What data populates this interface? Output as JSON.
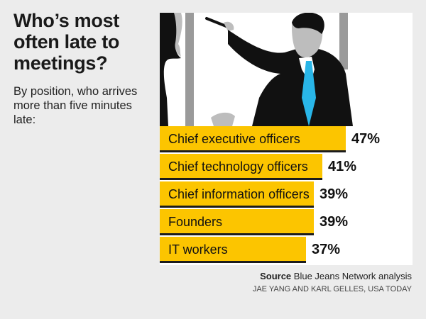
{
  "title": "Who’s most often late to meetings?",
  "subtitle": "By position, who arrives more than five minutes late:",
  "source": {
    "label": "Source",
    "text": "Blue Jeans Network analysis"
  },
  "credit": "JAE YANG AND KARL GELLES, USA TODAY",
  "colors": {
    "bar": "#fcc500",
    "background": "#ececec",
    "panel": "#ffffff",
    "tie": "#29b6e8"
  },
  "chart_data": {
    "type": "bar",
    "orientation": "horizontal",
    "title": "Who’s most often late to meetings?",
    "subtitle": "By position, who arrives more than five minutes late:",
    "xlabel": "",
    "ylabel": "",
    "xlim": [
      0,
      47
    ],
    "categories": [
      "Chief executive officers",
      "Chief technology officers",
      "Chief information officers",
      "Founders",
      "IT workers"
    ],
    "values": [
      47,
      41,
      39,
      39,
      37
    ],
    "value_labels": [
      "47%",
      "41%",
      "39%",
      "39%",
      "37%"
    ],
    "unit": "%"
  }
}
